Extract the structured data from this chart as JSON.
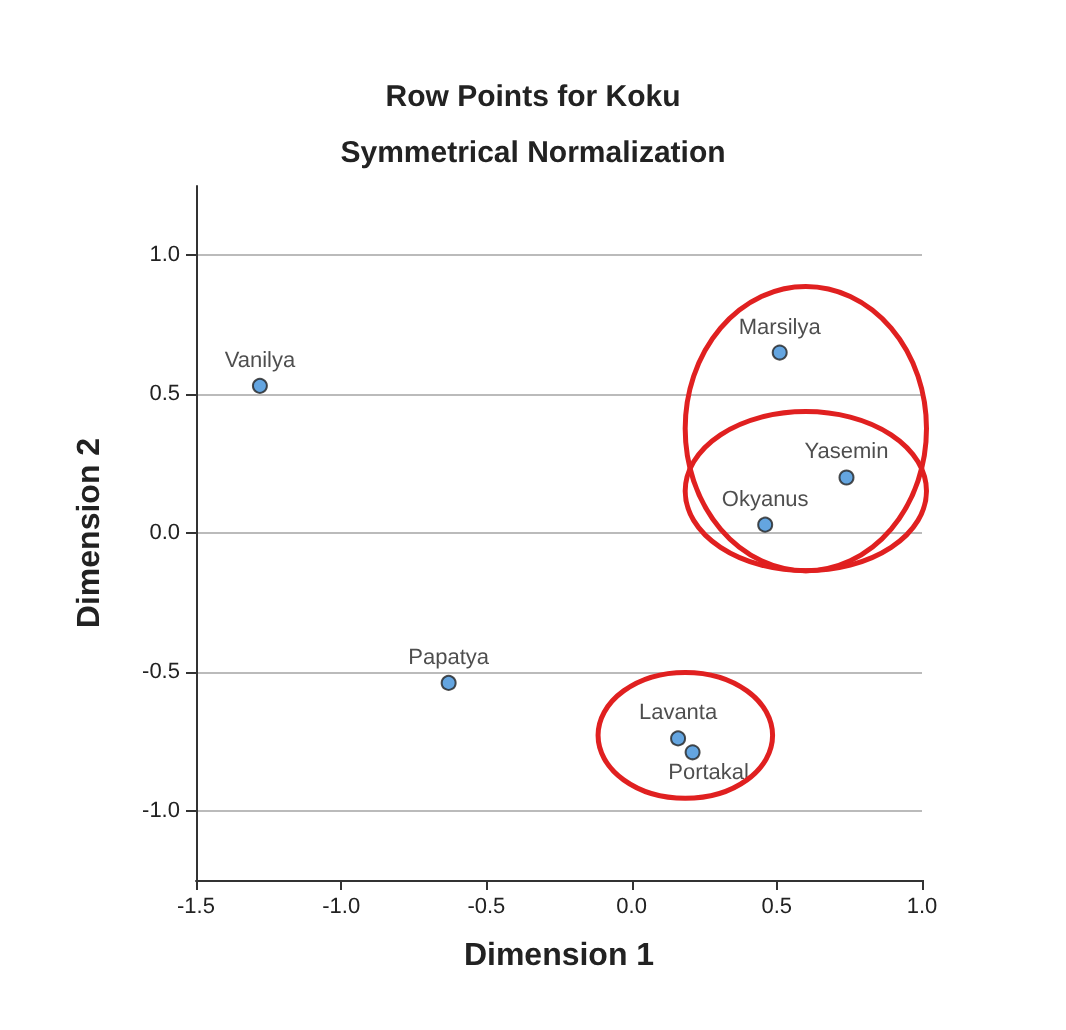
{
  "chart_data": {
    "type": "scatter",
    "title": "Row Points for Koku",
    "subtitle": "Symmetrical Normalization",
    "xlabel": "Dimension 1",
    "ylabel": "Dimension 2",
    "x": [
      -1.28,
      -0.63,
      0.51,
      0.74,
      0.46,
      0.16,
      0.21
    ],
    "values": [
      0.53,
      -0.54,
      0.65,
      0.2,
      0.03,
      -0.74,
      -0.79
    ],
    "color": "#3d8fd8",
    "marker": "circle",
    "grid": "y",
    "xlim": [
      -1.5,
      1.0
    ],
    "xticks": [
      {
        "value": -1.5,
        "label": "-1.5"
      },
      {
        "value": -1.0,
        "label": "-1.0"
      },
      {
        "value": -0.5,
        "label": "-0.5"
      },
      {
        "value": 0,
        "label": "0.0"
      },
      {
        "value": 0.5,
        "label": "0.5"
      },
      {
        "value": 1.0,
        "label": "1.0"
      }
    ],
    "ylim": [
      -1.25,
      1.25
    ],
    "yticks": [
      {
        "value": -1.0,
        "label": "-1.0"
      },
      {
        "value": -0.5,
        "label": "-0.5"
      },
      {
        "value": 0,
        "label": "0.0"
      },
      {
        "value": 0.5,
        "label": "0.5"
      },
      {
        "value": 1.0,
        "label": "1.0"
      }
    ],
    "annotations": [
      {
        "text": "Vanilya",
        "x": -1.28,
        "y": 0.53
      },
      {
        "text": "Papatya",
        "x": -0.63,
        "y": -0.54
      },
      {
        "text": "Marsilya",
        "x": 0.51,
        "y": 0.65
      },
      {
        "text": "Yasemin",
        "x": 0.74,
        "y": 0.2
      },
      {
        "text": "Okyanus",
        "x": 0.46,
        "y": 0.03
      },
      {
        "text": "Lavanta",
        "x": 0.16,
        "y": -0.74
      },
      {
        "text": "Portakal",
        "x": 0.21,
        "y": -0.79
      }
    ]
  }
}
